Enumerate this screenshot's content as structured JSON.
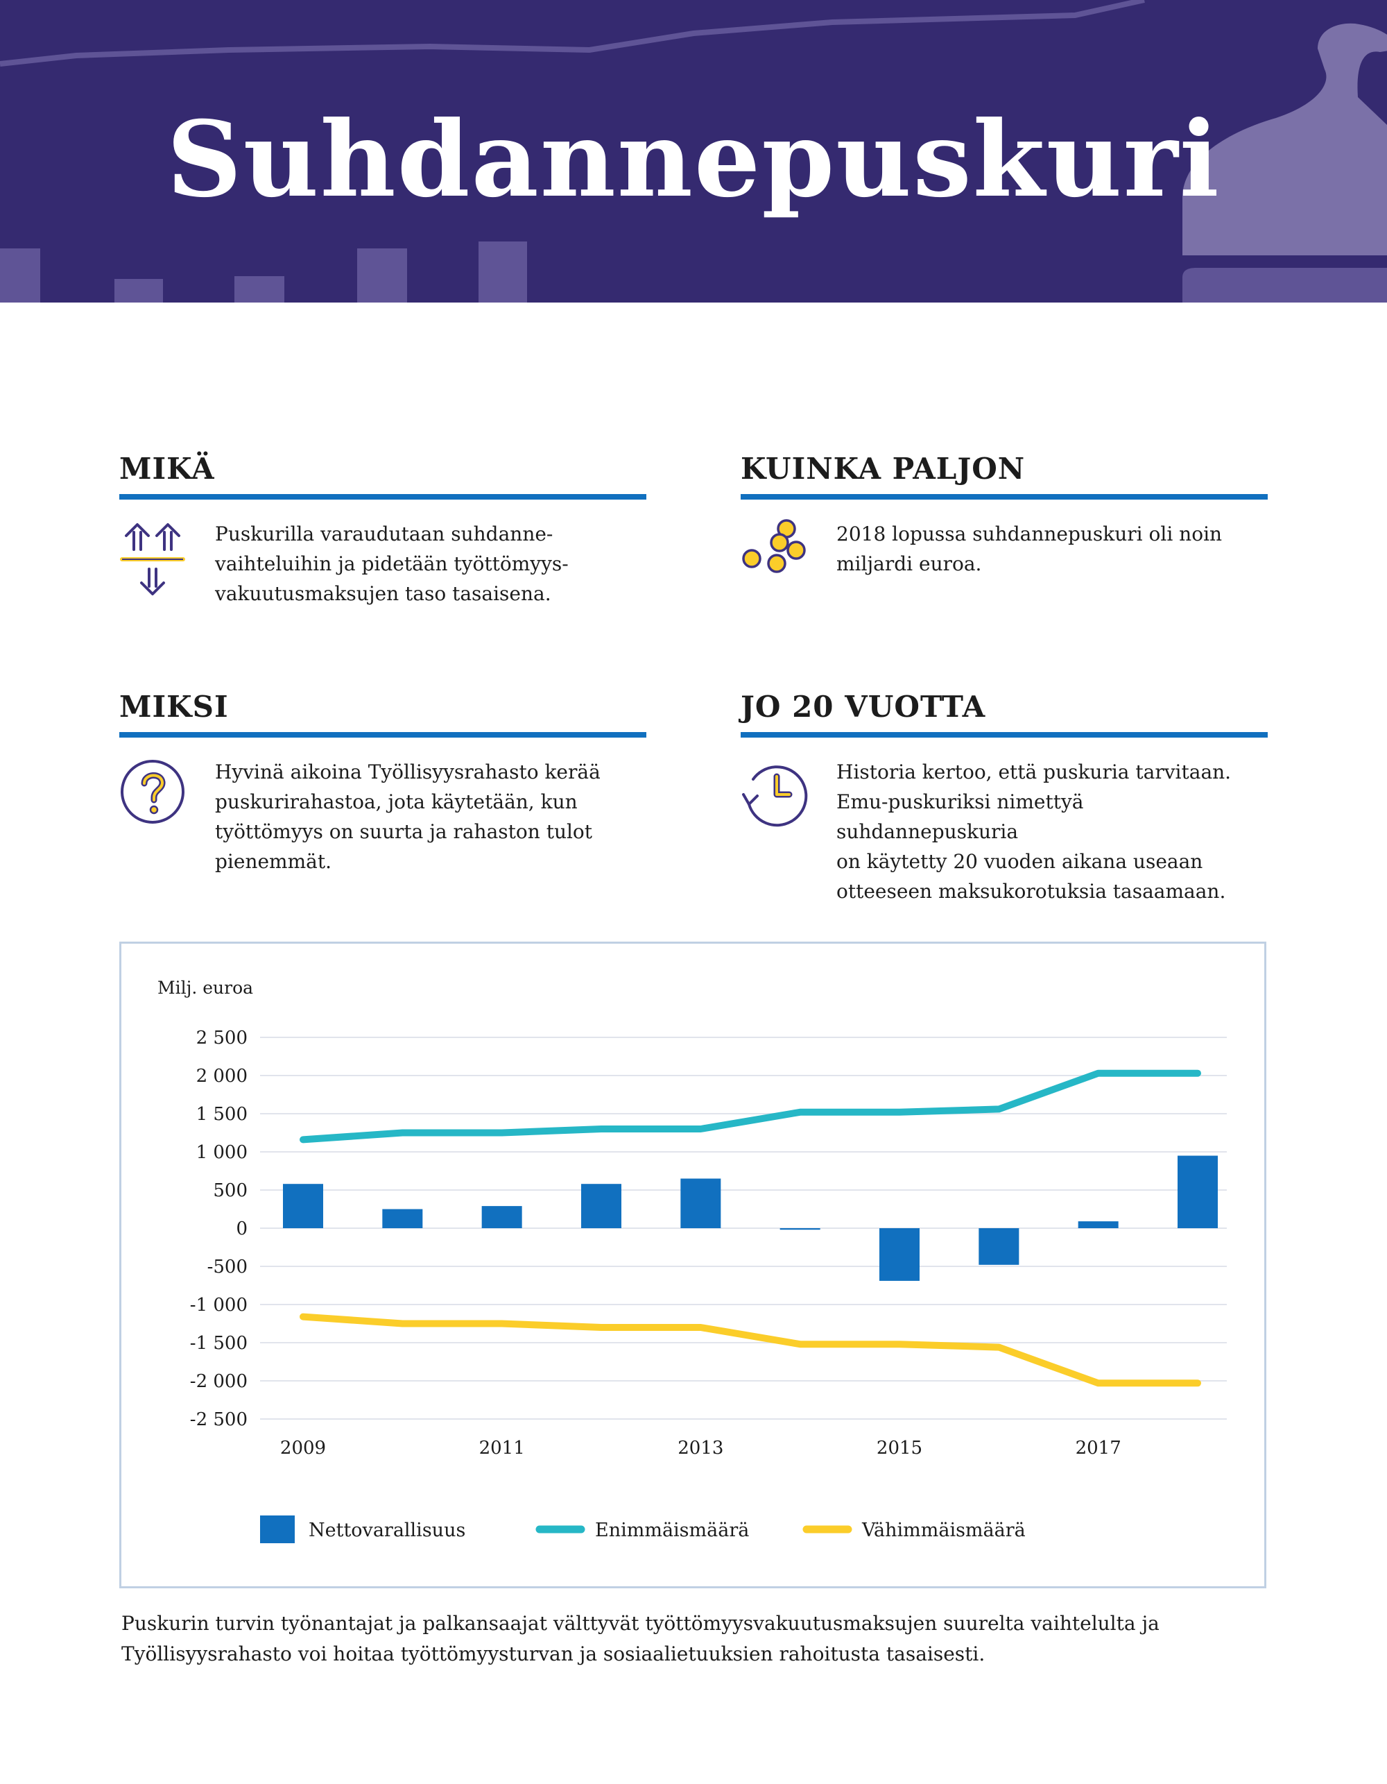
{
  "header": {
    "title": "Suhdannepuskuri"
  },
  "sections": [
    {
      "heading": "MIKÄ",
      "icon": "up-down-arrows-icon",
      "text": "Puskurilla varaudutaan suhdanne-\nvaihteluihin ja pidetään työttömyys-\nvakuutusmaksujen taso tasaisena."
    },
    {
      "heading": "KUINKA PALJON",
      "icon": "coins-icon",
      "text": "2018 lopussa suhdannepuskuri oli noin\nmiljardi euroa."
    },
    {
      "heading": "MIKSI",
      "icon": "question-icon",
      "text": "Hyvinä aikoina Työllisyysrahasto kerää\npuskurirahastoa, jota käytetään, kun\ntyöttömyys on suurta ja rahaston tulot\npienemmät."
    },
    {
      "heading": "JO 20 VUOTTA",
      "icon": "history-clock-icon",
      "text": "Historia kertoo, että puskuria tarvitaan.\nEmu-puskuriksi nimettyä suhdannepuskuria\non käytetty 20 vuoden aikana useaan\notteeseen maksukorotuksia tasaamaan."
    }
  ],
  "colors": {
    "banner": "#352a70",
    "accent_blue": "#1170bf",
    "teal": "#26b7c6",
    "yellow": "#fbcd2a",
    "purple": "#3e3381"
  },
  "chart_data": {
    "type": "bar",
    "ylabel": "Milj. euroa",
    "ylim": [
      -2500,
      2500
    ],
    "yticks": [
      2500,
      2000,
      1500,
      1000,
      500,
      0,
      -500,
      -1000,
      -1500,
      -2000,
      -2500
    ],
    "ytick_labels": [
      "2 500",
      "2 000",
      "1 500",
      "1 000",
      "500",
      "0",
      "-500",
      "-1 000",
      "-1 500",
      "-2 000",
      "-2 500"
    ],
    "x": [
      2009,
      2010,
      2011,
      2012,
      2013,
      2014,
      2015,
      2016,
      2017,
      2018
    ],
    "xtick_labels": [
      "2009",
      "2011",
      "2013",
      "2015",
      "2017"
    ],
    "xtick_labels_at": [
      2009,
      2011,
      2013,
      2015,
      2017
    ],
    "grid": true,
    "legend_position": "bottom",
    "series": [
      {
        "name": "Nettovarallisuus",
        "type": "bar",
        "color": "#1170bf",
        "values": [
          580,
          250,
          290,
          580,
          650,
          -20,
          -690,
          -480,
          90,
          950
        ]
      },
      {
        "name": "Enimmäismäärä",
        "type": "line",
        "color": "#26b7c6",
        "values": [
          1160,
          1250,
          1250,
          1300,
          1300,
          1520,
          1520,
          1560,
          2030,
          2030
        ]
      },
      {
        "name": "Vähimmäismäärä",
        "type": "line",
        "color": "#fbcd2a",
        "values": [
          -1160,
          -1250,
          -1250,
          -1300,
          -1300,
          -1520,
          -1520,
          -1560,
          -2030,
          -2030
        ]
      }
    ]
  },
  "footer": {
    "text": "Puskurin turvin työnantajat ja palkansaajat välttyvät työttömyysvakuutusmaksujen suurelta vaihtelulta ja Työllisyysrahasto voi hoitaa työttömyysturvan ja sosiaalietuuksien rahoitusta tasaisesti."
  }
}
